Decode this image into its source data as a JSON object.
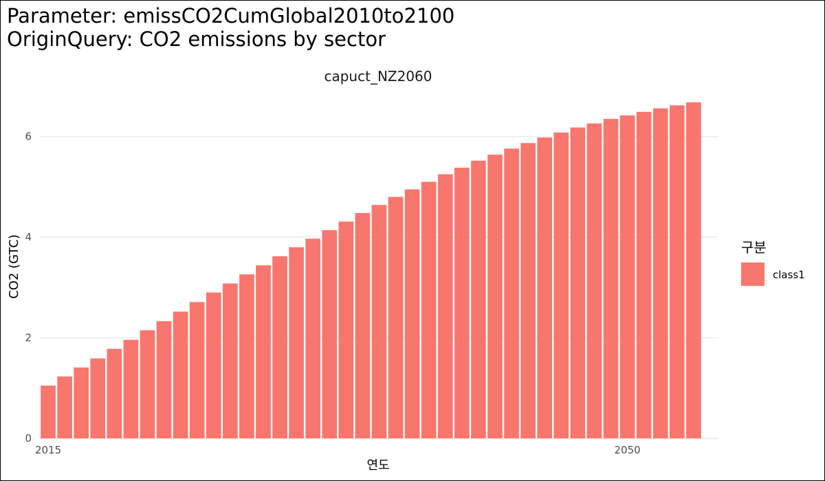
{
  "title_line1": "Parameter: emissCO2CumGlobal2010to2100",
  "title_line2": "OriginQuery: CO2 emissions by sector",
  "chart_data": {
    "type": "bar",
    "title": "capuct_NZ2060",
    "xlabel": "연도",
    "ylabel": "CO2 (GTC)",
    "xlim": [
      2014.5,
      2055.5
    ],
    "ylim": [
      0,
      6.87
    ],
    "x_ticks": [
      2015,
      2050
    ],
    "y_ticks": [
      0,
      2,
      4,
      6
    ],
    "grid": true,
    "legend": {
      "title": "구분",
      "position": "right",
      "entries": [
        "class1"
      ]
    },
    "colors": {
      "bar": "#F8766D",
      "grid": "#ebebeb"
    },
    "series": [
      {
        "name": "class1",
        "x": [
          2015,
          2016,
          2017,
          2018,
          2019,
          2020,
          2021,
          2022,
          2023,
          2024,
          2025,
          2026,
          2027,
          2028,
          2029,
          2030,
          2031,
          2032,
          2033,
          2034,
          2035,
          2036,
          2037,
          2038,
          2039,
          2040,
          2041,
          2042,
          2043,
          2044,
          2045,
          2046,
          2047,
          2048,
          2049,
          2050,
          2051,
          2052,
          2053,
          2054
        ],
        "values": [
          1.05,
          1.23,
          1.41,
          1.59,
          1.78,
          1.96,
          2.15,
          2.33,
          2.52,
          2.71,
          2.9,
          3.08,
          3.26,
          3.44,
          3.62,
          3.8,
          3.97,
          4.14,
          4.31,
          4.48,
          4.64,
          4.8,
          4.95,
          5.1,
          5.25,
          5.38,
          5.52,
          5.64,
          5.76,
          5.87,
          5.98,
          6.08,
          6.18,
          6.26,
          6.35,
          6.42,
          6.49,
          6.56,
          6.62,
          6.68
        ]
      }
    ]
  }
}
